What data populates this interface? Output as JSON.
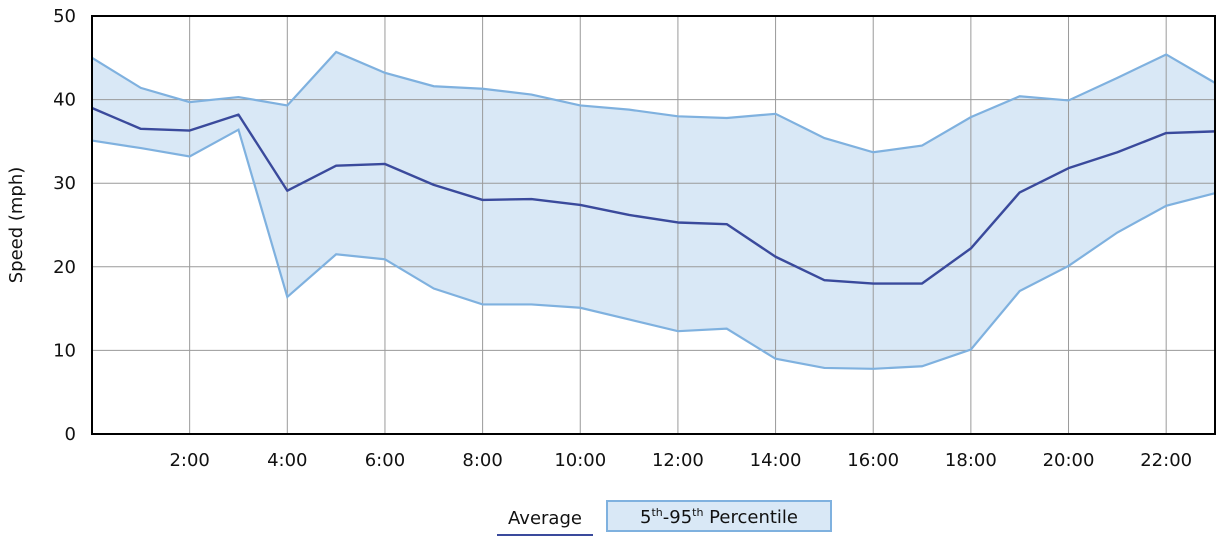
{
  "chart_data": {
    "type": "line",
    "ylabel": "Speed (mph)",
    "xlabel": "",
    "ylim": [
      0,
      50
    ],
    "xlim": [
      0,
      23
    ],
    "yticks": [
      "0",
      "10",
      "20",
      "30",
      "40",
      "50"
    ],
    "xtick_values": [
      2,
      4,
      6,
      8,
      10,
      12,
      14,
      16,
      18,
      20,
      22
    ],
    "xtick_labels": [
      "2:00",
      "4:00",
      "6:00",
      "8:00",
      "10:00",
      "12:00",
      "14:00",
      "16:00",
      "18:00",
      "20:00",
      "22:00"
    ],
    "grid": true,
    "x": [
      0,
      1,
      2,
      3,
      4,
      5,
      6,
      7,
      8,
      9,
      10,
      11,
      12,
      13,
      14,
      15,
      16,
      17,
      18,
      19,
      20,
      21,
      22,
      23
    ],
    "series": [
      {
        "name": "Average",
        "type": "line",
        "color": "#3a4a9c",
        "values": [
          39,
          36.5,
          36.3,
          38.2,
          29.1,
          32.1,
          32.3,
          29.8,
          28.0,
          28.1,
          27.4,
          26.2,
          25.3,
          25.1,
          21.2,
          18.4,
          18.0,
          18.0,
          22.2,
          28.9,
          31.8,
          33.7,
          36.0,
          36.2
        ]
      },
      {
        "name": "5th-95th Percentile",
        "type": "band",
        "stroke": "#7fb1df",
        "fill": "#d9e8f6",
        "upper": [
          45,
          41.4,
          39.7,
          40.3,
          39.3,
          45.7,
          43.2,
          41.6,
          41.3,
          40.6,
          39.3,
          38.8,
          38.0,
          37.8,
          38.3,
          35.4,
          33.7,
          34.5,
          37.9,
          40.4,
          39.9,
          42.6,
          45.4,
          42.0
        ],
        "lower": [
          35.1,
          34.2,
          33.2,
          36.4,
          16.4,
          21.5,
          20.9,
          17.4,
          15.5,
          15.5,
          15.1,
          13.7,
          12.3,
          12.6,
          9.0,
          7.9,
          7.8,
          8.1,
          10.1,
          17.1,
          20.1,
          24.1,
          27.3,
          28.8
        ]
      }
    ]
  },
  "legend": {
    "average_label": "Average",
    "band_label_parts": [
      "5",
      "th",
      "-95",
      "th",
      " Percentile"
    ]
  }
}
